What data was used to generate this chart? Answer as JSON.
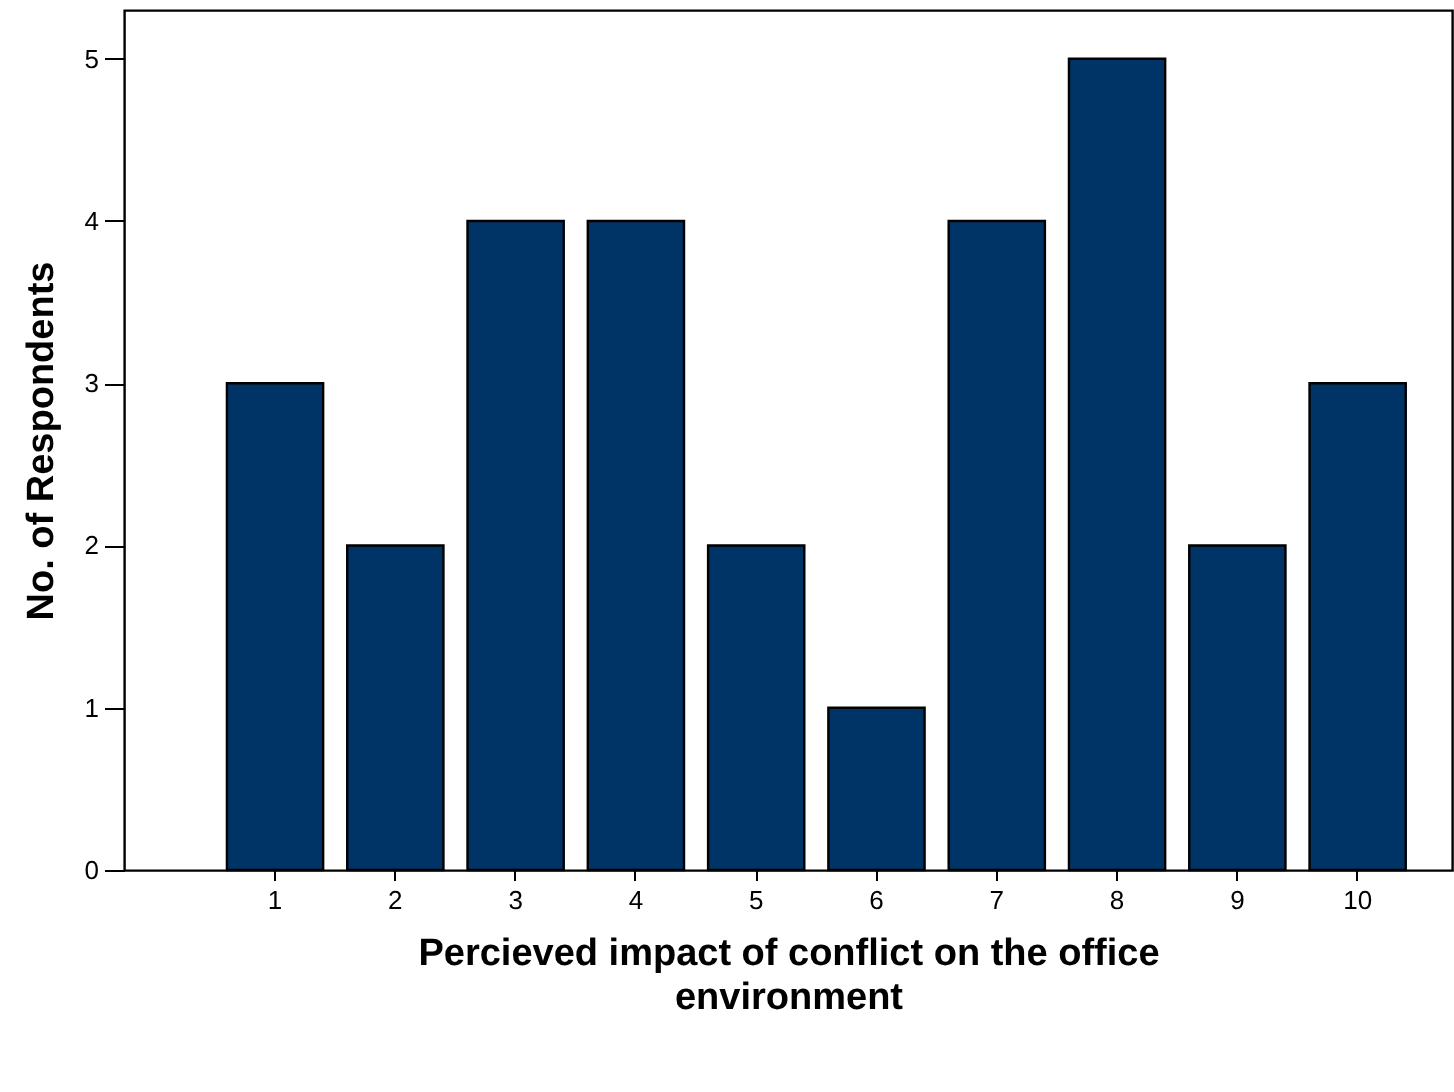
{
  "chart_data": {
    "type": "bar",
    "xlabel": "Percieved impact of conflict on the office environment",
    "ylabel": "No. of Respondents",
    "categories": [
      "1",
      "2",
      "3",
      "4",
      "5",
      "6",
      "7",
      "8",
      "9",
      "10"
    ],
    "values": [
      3,
      2,
      4,
      4,
      2,
      1,
      4,
      5,
      2,
      3
    ],
    "color": "#003366",
    "ylim": [
      0,
      5.3
    ],
    "yticks": [
      0,
      1,
      2,
      3,
      4,
      5
    ],
    "grid": false
  }
}
